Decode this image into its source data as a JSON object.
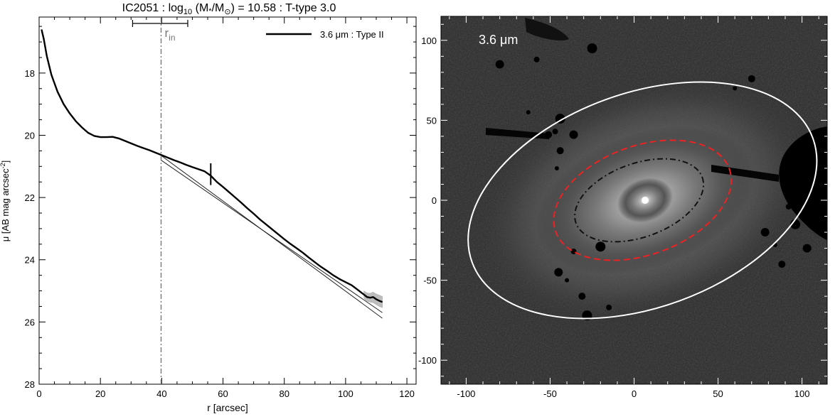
{
  "chart_data": [
    {
      "type": "line",
      "title_main": "IC2051 : log",
      "title_sub": "10",
      "title_mid": " (M",
      "title_star": "*",
      "title_slash": "/M",
      "title_sun": "⊙",
      "title_end": ") = 10.58 : T-type 3.0",
      "xlabel": "r [arcsec]",
      "ylabel_main": "μ [AB mag arcsec",
      "ylabel_sup": "-2",
      "ylabel_end": "]",
      "xlim": [
        0,
        123
      ],
      "ylim": [
        28,
        16.2
      ],
      "y_inverted": true,
      "x_ticks": [
        0,
        20,
        40,
        60,
        80,
        100,
        120
      ],
      "y_ticks": [
        18,
        20,
        22,
        24,
        26,
        28
      ],
      "legend": {
        "label": "3.6 μm : Type II",
        "position": "top-right"
      },
      "r_in": {
        "value": 39.8,
        "error_low": 30.5,
        "error_high": 48.5,
        "label": "r",
        "label_sub": "in"
      },
      "break_marker": {
        "x": 56,
        "y_range": [
          20.9,
          21.6
        ]
      },
      "series": [
        {
          "role": "profile",
          "x": [
            0.8,
            1.5,
            2.5,
            4,
            6,
            8,
            10,
            12,
            14,
            16,
            18,
            20,
            22,
            24,
            26,
            28,
            30,
            32,
            34,
            36,
            38,
            40,
            42,
            44,
            46,
            48,
            50,
            52,
            54,
            56,
            58,
            60,
            62,
            64,
            66,
            68,
            70,
            72,
            74,
            76,
            78,
            80,
            82,
            84,
            86,
            88,
            90,
            92,
            94,
            96,
            98,
            100,
            102,
            104,
            106,
            107,
            108,
            109,
            110,
            111,
            112
          ],
          "y": [
            16.6,
            16.9,
            17.45,
            18.05,
            18.6,
            19.0,
            19.3,
            19.55,
            19.75,
            19.92,
            20.02,
            20.06,
            20.06,
            20.05,
            20.1,
            20.18,
            20.26,
            20.34,
            20.41,
            20.48,
            20.56,
            20.64,
            20.72,
            20.8,
            20.87,
            20.95,
            21.02,
            21.09,
            21.16,
            21.3,
            21.5,
            21.66,
            21.83,
            22.0,
            22.17,
            22.35,
            22.52,
            22.7,
            22.86,
            23.02,
            23.18,
            23.34,
            23.49,
            23.63,
            23.77,
            23.93,
            24.08,
            24.23,
            24.36,
            24.5,
            24.62,
            24.72,
            24.82,
            24.97,
            25.12,
            25.2,
            25.22,
            25.2,
            25.27,
            25.32,
            25.36
          ],
          "y_err_low": [
            25.0,
            25.07,
            25.08,
            25.04,
            25.1,
            25.14,
            25.18
          ],
          "y_err_high": [
            25.25,
            25.33,
            25.36,
            25.38,
            25.44,
            25.5,
            25.54
          ]
        },
        {
          "role": "inner-fit",
          "x": [
            39.8,
            112
          ],
          "y": [
            20.8,
            25.7
          ]
        },
        {
          "role": "outer-fit",
          "x": [
            39.8,
            112
          ],
          "y": [
            20.65,
            25.88
          ]
        },
        {
          "role": "profile-error-band",
          "x_start": 106
        }
      ]
    },
    {
      "type": "image",
      "label_main": "3.6 ",
      "label_unit": "μm",
      "xlim": [
        -115,
        115
      ],
      "ylim": [
        -115,
        115
      ],
      "x_ticks": [
        -100,
        -50,
        0,
        50,
        100
      ],
      "y_ticks": [
        -100,
        -50,
        0,
        50,
        100
      ],
      "ellipses": [
        {
          "role": "outer",
          "color": "#ffffff",
          "style": "solid",
          "cx": 5,
          "cy": 0,
          "a": 108,
          "b": 67,
          "angle_deg": -20
        },
        {
          "role": "break",
          "color": "#ee2222",
          "style": "dashed",
          "cx": 5,
          "cy": 0,
          "a": 55,
          "b": 34,
          "angle_deg": -20
        },
        {
          "role": "inner",
          "color": "#111111",
          "style": "dash-dot",
          "cx": 3,
          "cy": 0,
          "a": 40,
          "b": 23,
          "angle_deg": -20
        }
      ],
      "stars": [
        [
          -63,
          55
        ],
        [
          -51,
          41
        ],
        [
          -44,
          51
        ],
        [
          -47,
          43
        ],
        [
          -36,
          41
        ],
        [
          -46,
          20
        ],
        [
          -44,
          31
        ],
        [
          -20,
          -29
        ],
        [
          -36,
          -32
        ],
        [
          -45,
          -45
        ],
        [
          -40,
          -50
        ],
        [
          -31,
          -60
        ],
        [
          -28,
          -72
        ],
        [
          -15,
          -67
        ],
        [
          78,
          -20
        ],
        [
          84,
          -28
        ],
        [
          88,
          -40
        ],
        [
          96,
          -15
        ],
        [
          92,
          -4
        ],
        [
          103,
          -30
        ],
        [
          60,
          70
        ],
        [
          70,
          76
        ],
        [
          -25,
          95
        ],
        [
          -58,
          88
        ],
        [
          -80,
          85
        ]
      ],
      "colors": {
        "sky": "#2c2c2c",
        "galaxy_core": "#ffffff",
        "mask": "#000000"
      }
    }
  ]
}
